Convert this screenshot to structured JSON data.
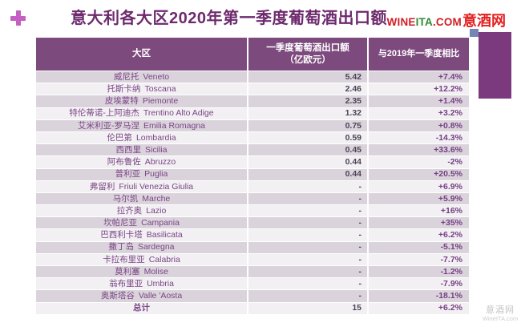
{
  "header": {
    "title": "意大利各大区2020年第一季度葡萄酒出口额",
    "logo": {
      "wine": "WINE",
      "ita": "ITA",
      "com": ".COM",
      "site_cn": "意酒网"
    }
  },
  "table": {
    "header": {
      "region": "大区",
      "export_line1": "一季度葡萄酒出口额",
      "export_line2": "（亿欧元）",
      "change": "与2019年一季度相比"
    }
  },
  "chart_data": {
    "type": "table",
    "title": "意大利各大区2020年第一季度葡萄酒出口额",
    "columns": [
      "大区",
      "一季度葡萄酒出口额（亿欧元）",
      "与2019年一季度相比"
    ],
    "rows": [
      {
        "cn": "威尼托",
        "it": "Veneto",
        "value": "5.42",
        "change": "+7.4%"
      },
      {
        "cn": "托斯卡纳",
        "it": "Toscana",
        "value": "2.46",
        "change": "+12.2%"
      },
      {
        "cn": "皮埃蒙特",
        "it": "Piemonte",
        "value": "2.35",
        "change": "+1.4%"
      },
      {
        "cn": "特伦蒂诺-上阿迪杰",
        "it": "Trentino Alto Adige",
        "value": "1.32",
        "change": "+3.2%"
      },
      {
        "cn": "艾米利亚-罗马涅",
        "it": "Emilia Romagna",
        "value": "0.75",
        "change": "+0.8%"
      },
      {
        "cn": "伦巴第",
        "it": "Lombardia",
        "value": "0.59",
        "change": "-14.3%"
      },
      {
        "cn": "西西里",
        "it": "Sicilia",
        "value": "0.45",
        "change": "+33.6%"
      },
      {
        "cn": "阿布鲁佐",
        "it": "Abruzzo",
        "value": "0.44",
        "change": "-2%"
      },
      {
        "cn": "普利亚",
        "it": "Puglia",
        "value": "0.44",
        "change": "+20.5%"
      },
      {
        "cn": "弗留利",
        "it": "Friuli Venezia Giulia",
        "value": "-",
        "change": "+6.9%"
      },
      {
        "cn": "马尔凯",
        "it": "Marche",
        "value": "-",
        "change": "+5.9%"
      },
      {
        "cn": "拉齐奥",
        "it": "Lazio",
        "value": "-",
        "change": "+16%"
      },
      {
        "cn": "坎帕尼亚",
        "it": "Campania",
        "value": "-",
        "change": "+35%"
      },
      {
        "cn": "巴西利卡塔",
        "it": "Basilicata",
        "value": "-",
        "change": "+6.2%"
      },
      {
        "cn": "撒丁岛",
        "it": "Sardegna",
        "value": "-",
        "change": "-5.1%"
      },
      {
        "cn": "卡拉布里亚",
        "it": "Calabria",
        "value": "-",
        "change": "-7.7%"
      },
      {
        "cn": "莫利塞",
        "it": "Molise",
        "value": "-",
        "change": "-1.2%"
      },
      {
        "cn": "翁布里亚",
        "it": "Umbria",
        "value": "-",
        "change": "-7.9%"
      },
      {
        "cn": "奥斯塔谷",
        "it": "Valle 'Aosta",
        "value": "-",
        "change": "-18.1%"
      }
    ],
    "total": {
      "label": "总计",
      "value": "15",
      "change": "+6.2%"
    }
  },
  "watermark": {
    "line1": "意酒网",
    "line2": "WineITA.com"
  },
  "colors": {
    "title": "#6d2a6d",
    "plus_icon": "#c55fc2",
    "logo_red": "#cf1f25",
    "logo_green": "#2f8a33",
    "header_bg": "#7d4a7e",
    "row_odd_bg": "#dad3db",
    "row_even_bg": "#f2f0f3",
    "decor_block": "#7c3a7e",
    "decor_square": "#7585b5"
  }
}
